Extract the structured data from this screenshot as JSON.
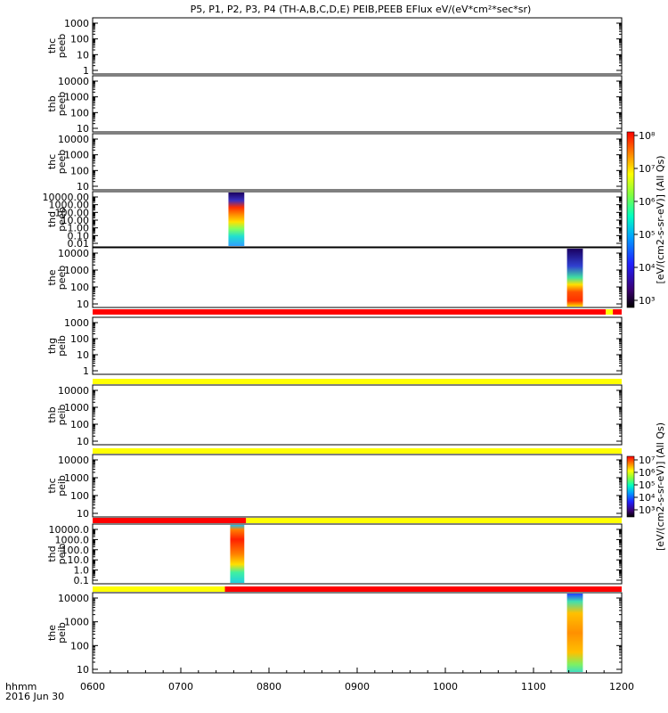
{
  "title": "P5, P1, P2, P3, P4 (TH-A,B,C,D,E) PEIB,PEEB EFlux eV/(eV*cm²*sec*sr)",
  "x_axis": {
    "ticks": [
      "0600",
      "0700",
      "0800",
      "0900",
      "1000",
      "1100",
      "1200"
    ],
    "label_line1": "hhmm",
    "label_line2": "2016 Jun 30"
  },
  "colors": {
    "flag_red": "#ff0000",
    "flag_yellow": "#ffff00",
    "spectro_ramp": [
      "#000000",
      "#3a0070",
      "#2020ff",
      "#00a0ff",
      "#00ffc0",
      "#80ff40",
      "#ffff00",
      "#ff8000",
      "#ff0000"
    ]
  },
  "colorbars": [
    {
      "label": "[eV/(cm2-s-sr-eV)] (All Qs)",
      "ticks": [
        "10⁸",
        "10⁷",
        "10⁶",
        "10⁵",
        "10⁴",
        "10³"
      ]
    },
    {
      "label": "[eV/(cm2-s-sr-eV)] (All Qs)",
      "ticks": [
        "10⁷",
        "10⁶",
        "10⁵",
        "10⁴",
        "10³"
      ]
    }
  ],
  "chart_data": {
    "type": "heatmap",
    "x_range": [
      600,
      1200
    ],
    "x_unit": "hhmm",
    "panels": [
      {
        "label1": "thc",
        "label2": "peeb",
        "ylog": true,
        "yticks": [
          "1000",
          "100",
          "10",
          "1"
        ],
        "ylim": [
          1,
          1000
        ],
        "spans": []
      },
      {
        "label1": "thb",
        "label2": "peeb",
        "ylog": true,
        "yticks": [
          "10000",
          "1000",
          "100",
          "10"
        ],
        "ylim": [
          10,
          10000
        ],
        "spans": []
      },
      {
        "label1": "thc",
        "label2": "peeb",
        "ylog": true,
        "yticks": [
          "10000",
          "1000",
          "100",
          "10"
        ],
        "ylim": [
          10,
          10000
        ],
        "spans": []
      },
      {
        "label1": "thd",
        "label2": "peeb",
        "ylog": true,
        "yticks": [
          "10000.00",
          "1000.00",
          "100.00",
          "10.00",
          "1.00",
          "0.10",
          "0.01"
        ],
        "ylim": [
          0.01,
          10000
        ],
        "spans": [
          {
            "start": 754,
            "end": 772
          }
        ]
      },
      {
        "label1": "the",
        "label2": "peeb",
        "ylog": true,
        "yticks": [
          "10000",
          "1000",
          "100",
          "10"
        ],
        "ylim": [
          10,
          10000
        ],
        "spans": [
          {
            "start": 1138,
            "end": 1156
          }
        ]
      },
      {
        "label1": "thg",
        "label2": "peib",
        "ylog": true,
        "yticks": [
          "1000",
          "100",
          "10",
          "1"
        ],
        "ylim": [
          1,
          1000
        ],
        "spans": []
      },
      {
        "label1": "thb",
        "label2": "peib",
        "ylog": true,
        "yticks": [
          "10000",
          "1000",
          "100",
          "10"
        ],
        "ylim": [
          10,
          10000
        ],
        "spans": []
      },
      {
        "label1": "thc",
        "label2": "peib",
        "ylog": true,
        "yticks": [
          "10000",
          "1000",
          "100",
          "10"
        ],
        "ylim": [
          10,
          10000
        ],
        "spans": []
      },
      {
        "label1": "thd",
        "label2": "peib",
        "ylog": true,
        "yticks": [
          "10000.0",
          "1000.0",
          "100.0",
          "10.0",
          "1.0",
          "0.1"
        ],
        "ylim": [
          0.1,
          10000
        ],
        "spans": [
          {
            "start": 756,
            "end": 772
          }
        ]
      },
      {
        "label1": "the",
        "label2": "peib",
        "ylog": true,
        "yticks": [
          "10000",
          "1000",
          "100",
          "10"
        ],
        "ylim": [
          10,
          10000
        ],
        "spans": [
          {
            "start": 1138,
            "end": 1156
          }
        ]
      }
    ],
    "flag_bars": [
      {
        "after_panel": 4,
        "segments": [
          {
            "start": 600,
            "end": 1182,
            "color": "red"
          },
          {
            "start": 1182,
            "end": 1190,
            "color": "yellow"
          },
          {
            "start": 1190,
            "end": 1200,
            "color": "red"
          }
        ]
      },
      {
        "after_panel": 5,
        "segments": [
          {
            "start": 600,
            "end": 1200,
            "color": "yellow"
          }
        ]
      },
      {
        "after_panel": 6,
        "segments": [
          {
            "start": 600,
            "end": 1200,
            "color": "yellow"
          }
        ]
      },
      {
        "after_panel": 7,
        "segments": [
          {
            "start": 600,
            "end": 774,
            "color": "red"
          },
          {
            "start": 774,
            "end": 1200,
            "color": "yellow"
          }
        ]
      },
      {
        "after_panel": 8,
        "segments": [
          {
            "start": 600,
            "end": 750,
            "color": "yellow"
          },
          {
            "start": 750,
            "end": 1200,
            "color": "red"
          }
        ]
      }
    ]
  }
}
